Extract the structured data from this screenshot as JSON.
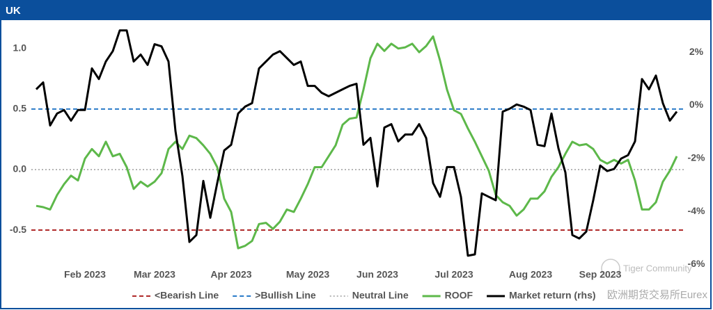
{
  "chart_data": {
    "type": "line",
    "title": "UK",
    "categories": [
      null,
      null,
      null,
      null,
      null,
      null,
      null,
      "Feb 2023",
      null,
      null,
      null,
      null,
      null,
      null,
      null,
      null,
      null,
      "Mar 2023",
      null,
      null,
      null,
      null,
      null,
      null,
      null,
      null,
      null,
      null,
      "Apr 2023",
      null,
      null,
      null,
      null,
      null,
      null,
      null,
      null,
      null,
      null,
      "May 2023",
      null,
      null,
      null,
      null,
      null,
      null,
      null,
      null,
      null,
      "Jun 2023",
      null,
      null,
      null,
      null,
      null,
      null,
      null,
      null,
      null,
      null,
      "Jul 2023",
      null,
      null,
      null,
      null,
      null,
      null,
      null,
      null,
      null,
      null,
      "Aug 2023",
      null,
      null,
      null,
      null,
      null,
      null,
      null,
      null,
      null,
      "Sep 2023",
      null,
      null,
      null,
      null,
      null,
      null,
      null,
      null,
      null,
      null,
      null
    ],
    "series": [
      {
        "name": "ROOF",
        "color": "#5db84a",
        "axis": "y",
        "values": [
          -0.3,
          -0.31,
          -0.33,
          -0.21,
          -0.12,
          -0.05,
          -0.09,
          0.09,
          0.17,
          0.11,
          0.23,
          0.11,
          0.13,
          0.02,
          -0.16,
          -0.1,
          -0.14,
          -0.1,
          -0.03,
          0.17,
          0.23,
          0.17,
          0.28,
          0.26,
          0.2,
          0.13,
          0.02,
          -0.24,
          -0.35,
          -0.65,
          -0.63,
          -0.59,
          -0.45,
          -0.44,
          -0.49,
          -0.43,
          -0.33,
          -0.35,
          -0.24,
          -0.12,
          0.02,
          0.02,
          0.11,
          0.2,
          0.37,
          0.42,
          0.43,
          0.66,
          0.92,
          1.04,
          0.98,
          1.04,
          1.0,
          1.01,
          1.04,
          0.97,
          1.02,
          1.1,
          0.9,
          0.66,
          0.49,
          0.46,
          0.34,
          0.23,
          0.11,
          -0.01,
          -0.21,
          -0.27,
          -0.3,
          -0.38,
          -0.33,
          -0.24,
          -0.24,
          -0.18,
          -0.06,
          0.02,
          0.13,
          0.23,
          0.2,
          0.21,
          0.17,
          0.08,
          0.05,
          0.08,
          0.05,
          0.08,
          -0.09,
          -0.33,
          -0.33,
          -0.27,
          -0.1,
          -0.01,
          0.11
        ]
      },
      {
        "name": "Market return (rhs)",
        "color": "#000000",
        "axis": "y2",
        "values": [
          0.6,
          0.86,
          -0.76,
          -0.31,
          -0.18,
          -0.58,
          -0.18,
          -0.18,
          1.39,
          0.99,
          1.65,
          2.04,
          2.82,
          2.82,
          1.65,
          1.91,
          1.52,
          2.3,
          2.22,
          1.65,
          -0.97,
          -2.67,
          -5.15,
          -4.89,
          -2.85,
          -4.24,
          -2.93,
          -1.7,
          -1.49,
          -0.31,
          -0.05,
          0.08,
          1.39,
          1.65,
          1.91,
          2.04,
          1.78,
          1.52,
          1.65,
          0.73,
          0.73,
          0.47,
          0.34,
          0.47,
          0.6,
          0.73,
          0.81,
          -1.49,
          -1.23,
          -3.06,
          -0.84,
          -0.71,
          -1.36,
          -1.1,
          -1.1,
          -0.71,
          -1.23,
          -2.93,
          -3.45,
          -2.33,
          -2.33,
          -3.45,
          -5.67,
          -5.62,
          -3.32,
          -3.45,
          -3.58,
          -0.24,
          -0.13,
          0.03,
          -0.05,
          -0.18,
          -1.49,
          -1.54,
          -0.31,
          -1.62,
          -2.53,
          -4.89,
          -5.02,
          -4.76,
          -3.58,
          -2.27,
          -2.48,
          -2.4,
          -2.01,
          -1.88,
          -1.36,
          0.99,
          0.6,
          1.12,
          0.08,
          -0.58,
          -0.24
        ]
      }
    ],
    "reference_lines": [
      {
        "name": "<Bearish Line",
        "value": -0.5,
        "color": "#b02a2a",
        "dash": "6,4"
      },
      {
        "name": ">Bullish Line",
        "value": 0.5,
        "color": "#2a7bc8",
        "dash": "6,4"
      },
      {
        "name": "Neutral Line",
        "value": 0,
        "color": "#b5b5b5",
        "dash": "2,3"
      }
    ],
    "ylim": [
      -0.85,
      1.2
    ],
    "yticks": [
      -0.5,
      {
        "value": 0,
        "label": "0.0"
      },
      0.5,
      {
        "value": 1,
        "label": "1.0"
      }
    ],
    "y2lim": [
      -6.3,
      3.05
    ],
    "y2ticks": [
      {
        "value": -6,
        "label": "-6%"
      },
      {
        "value": -4,
        "label": "-4%"
      },
      {
        "value": -2,
        "label": "-2%"
      },
      {
        "value": 0,
        "label": "0%"
      },
      {
        "value": 2,
        "label": "2%"
      }
    ],
    "legend": "bottom",
    "watermarks": [
      "Tiger Community",
      "欧洲期货交易所Eurex"
    ]
  }
}
